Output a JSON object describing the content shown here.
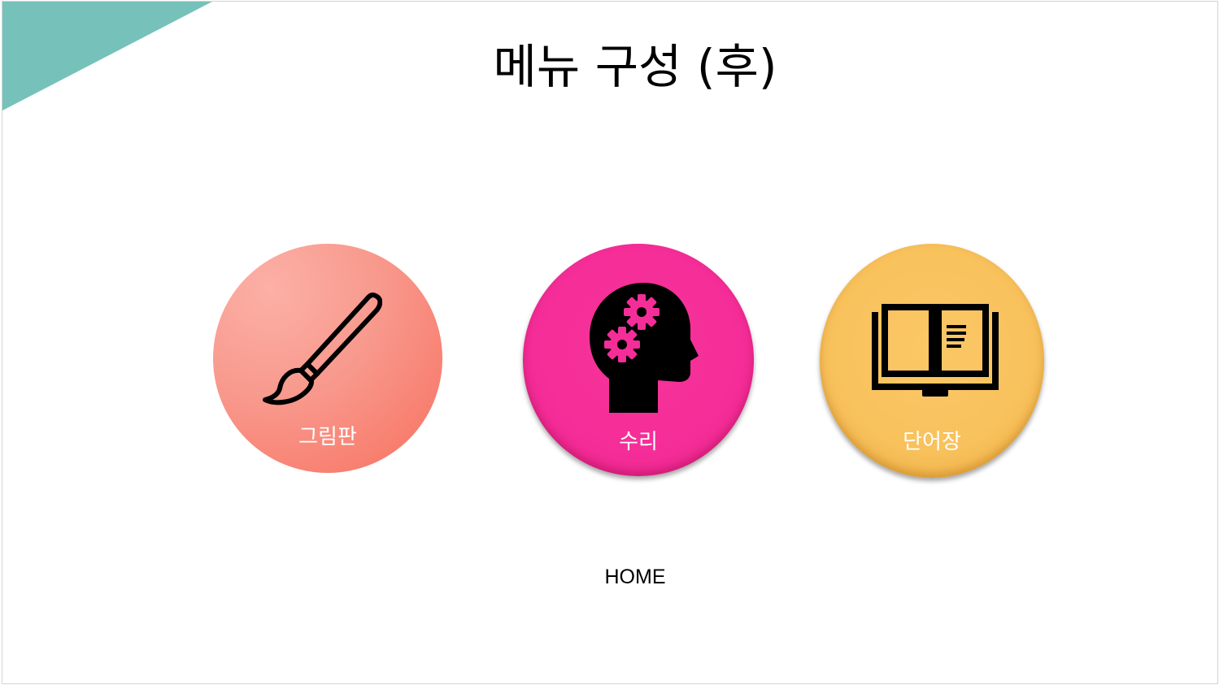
{
  "slide": {
    "title": "메뉴 구성 (후)",
    "accent_color": "#76c2bb"
  },
  "menu": {
    "items": [
      {
        "label": "그림판",
        "icon": "paintbrush-icon",
        "color": "#f88a7c"
      },
      {
        "label": "수리",
        "icon": "head-gears-icon",
        "color": "#f52d98"
      },
      {
        "label": "단어장",
        "icon": "open-book-icon",
        "color": "#f8c15c"
      }
    ]
  },
  "home": {
    "label": "HOME"
  }
}
